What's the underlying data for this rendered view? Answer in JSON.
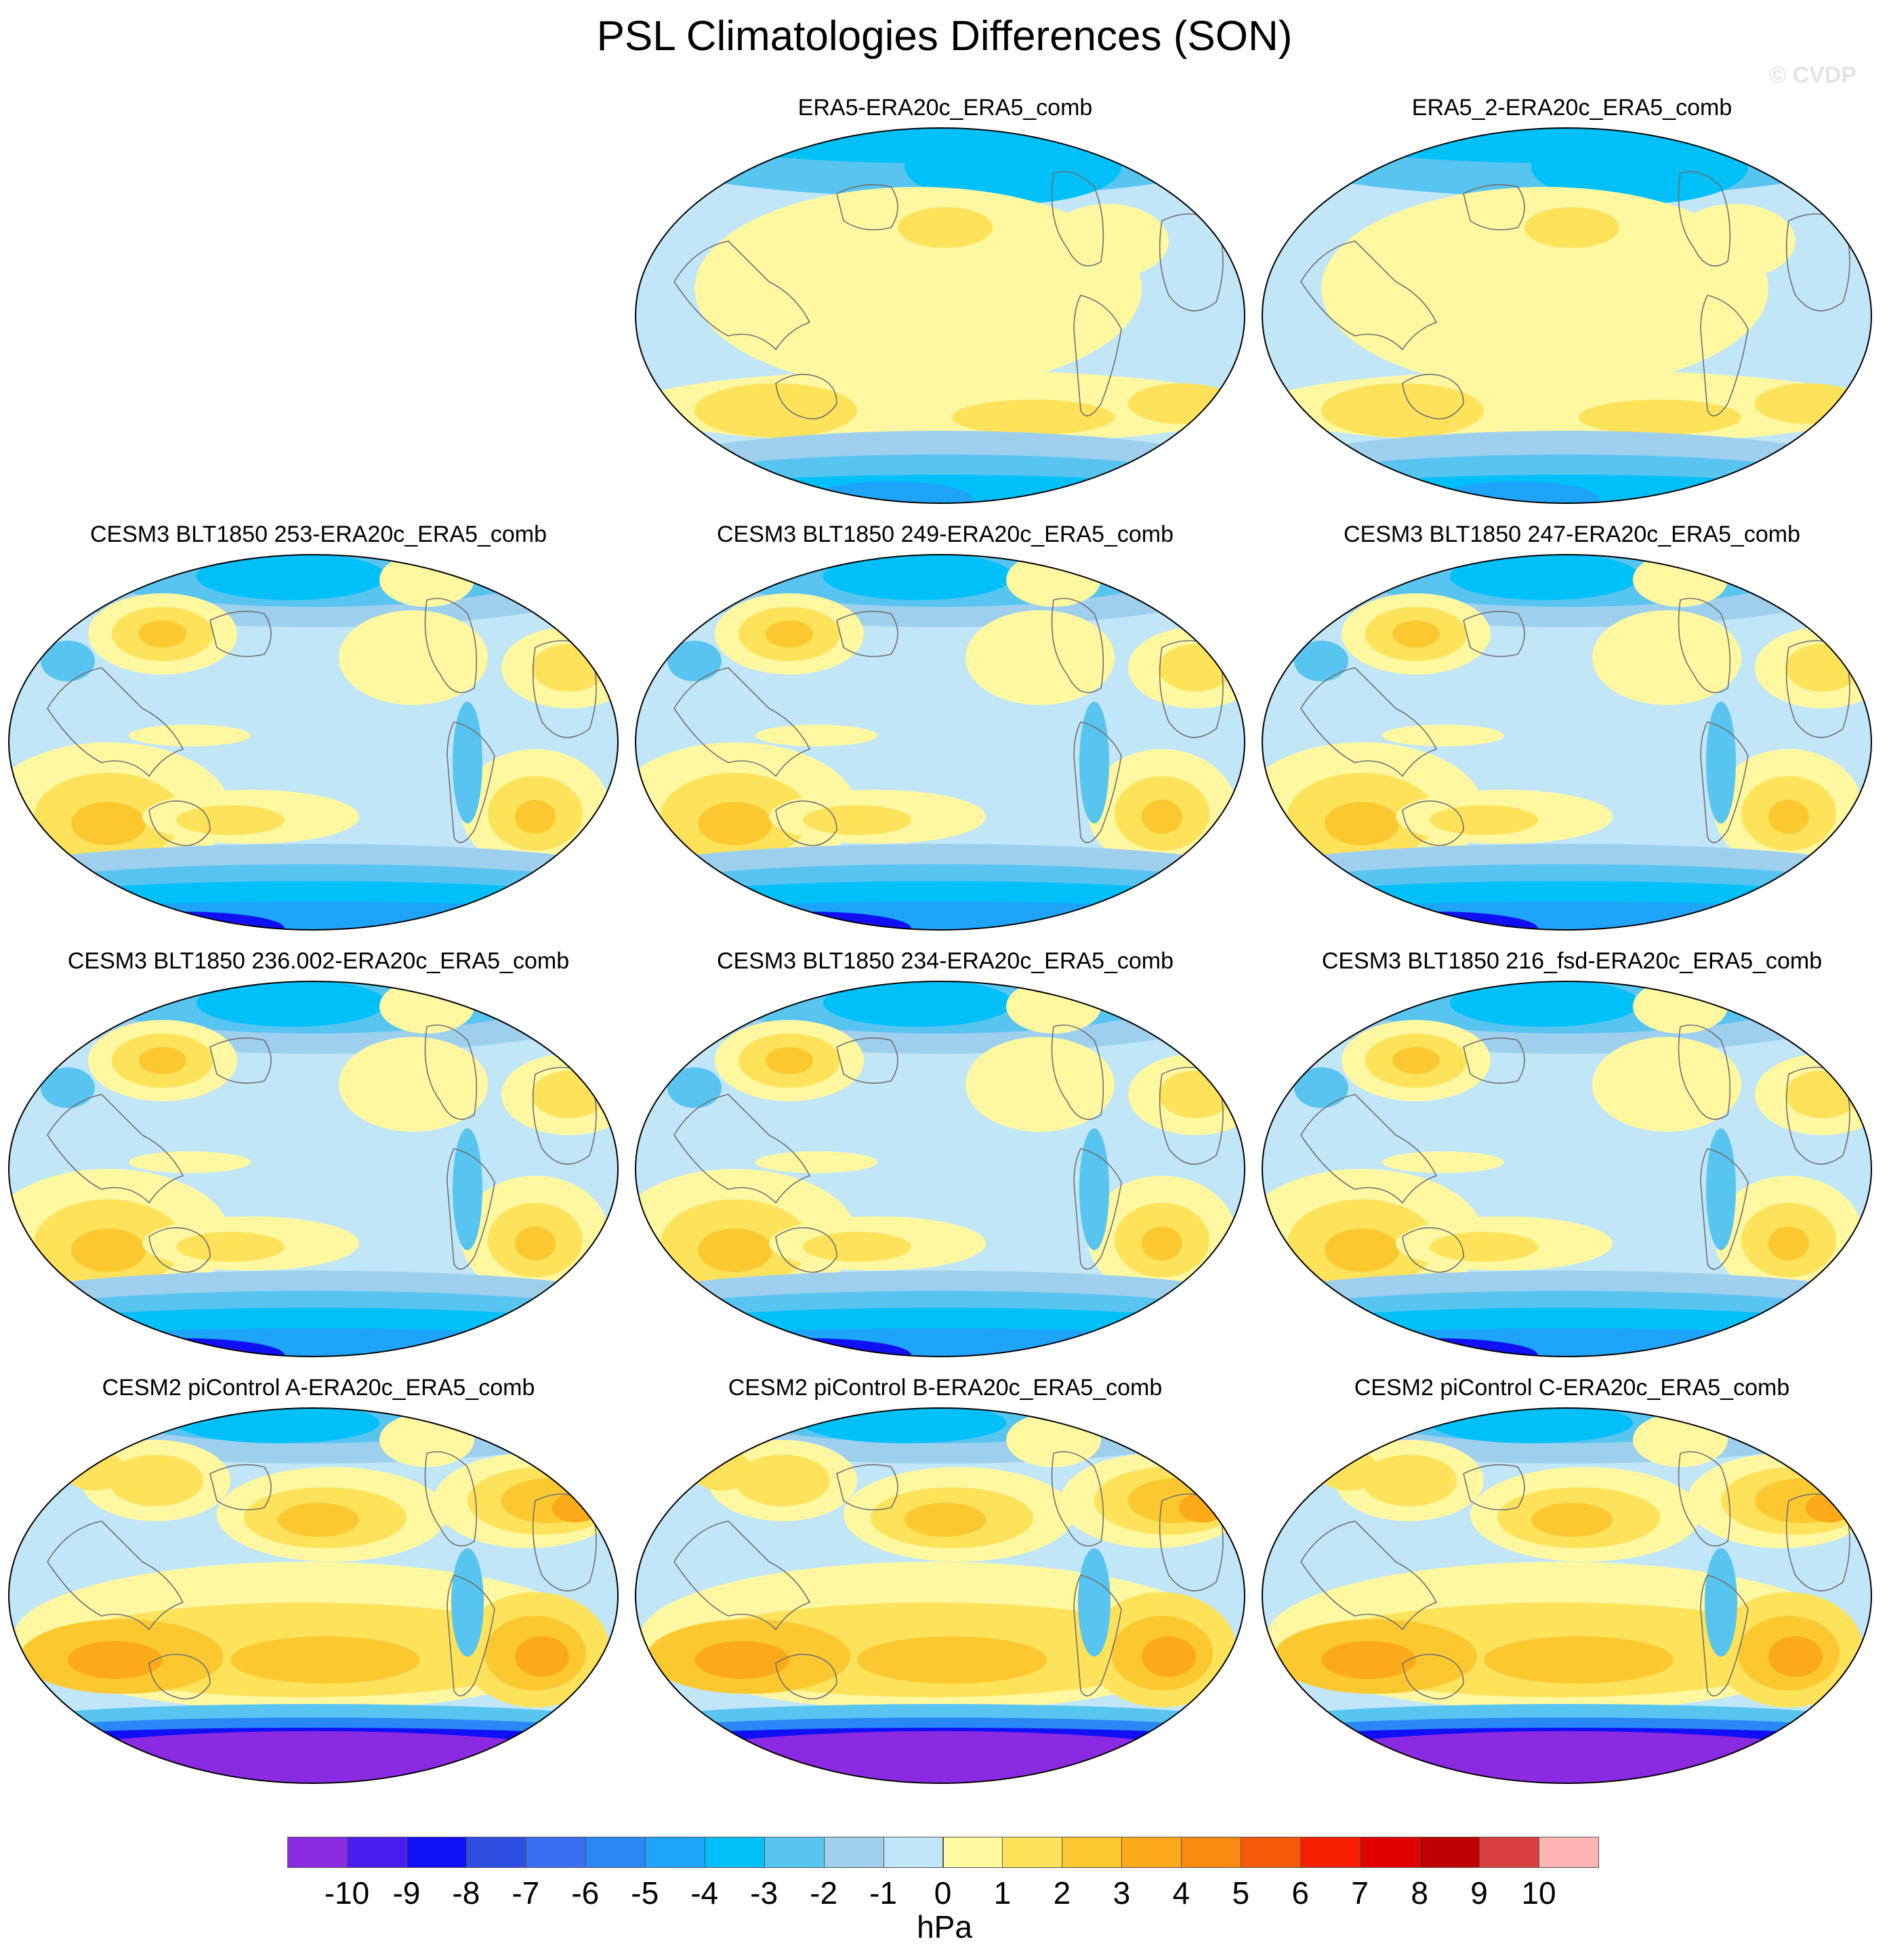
{
  "title": "PSL Climatologies Differences (SON)",
  "watermark": "© CVDP",
  "units": "hPa",
  "colorbar": {
    "ticks": [
      "-10",
      "-9",
      "-8",
      "-7",
      "-6",
      "-5",
      "-4",
      "-3",
      "-2",
      "-1",
      "0",
      "1",
      "2",
      "3",
      "4",
      "5",
      "6",
      "7",
      "8",
      "9",
      "10"
    ],
    "colors": [
      "#8a2be2",
      "#4b1cf0",
      "#1010f4",
      "#2e4ee0",
      "#3a6ef0",
      "#2a88f6",
      "#1ea4fa",
      "#00c0fa",
      "#58c4f0",
      "#9ed0ee",
      "#c0e6f8",
      "#fff8a0",
      "#fde25a",
      "#fcc830",
      "#fcaa1a",
      "#fb8a10",
      "#f85a08",
      "#f42000",
      "#e00000",
      "#c00000",
      "#d84040",
      "#ffb4b4"
    ]
  },
  "panels": [
    {
      "title": "ERA5-ERA20c_ERA5_comb",
      "variant": "obs"
    },
    {
      "title": "ERA5_2-ERA20c_ERA5_comb",
      "variant": "obs"
    },
    {
      "title": "CESM3 BLT1850 253-ERA20c_ERA5_comb",
      "variant": "cesm3"
    },
    {
      "title": "CESM3 BLT1850 249-ERA20c_ERA5_comb",
      "variant": "cesm3"
    },
    {
      "title": "CESM3 BLT1850 247-ERA20c_ERA5_comb",
      "variant": "cesm3"
    },
    {
      "title": "CESM3 BLT1850 236.002-ERA20c_ERA5_comb",
      "variant": "cesm3"
    },
    {
      "title": "CESM3 BLT1850 234-ERA20c_ERA5_comb",
      "variant": "cesm3"
    },
    {
      "title": "CESM3 BLT1850 216_fsd-ERA20c_ERA5_comb",
      "variant": "cesm3"
    },
    {
      "title": "CESM2 piControl A-ERA20c_ERA5_comb",
      "variant": "cesm2"
    },
    {
      "title": "CESM2 piControl B-ERA20c_ERA5_comb",
      "variant": "cesm2"
    },
    {
      "title": "CESM2 piControl C-ERA20c_ERA5_comb",
      "variant": "cesm2"
    }
  ]
}
